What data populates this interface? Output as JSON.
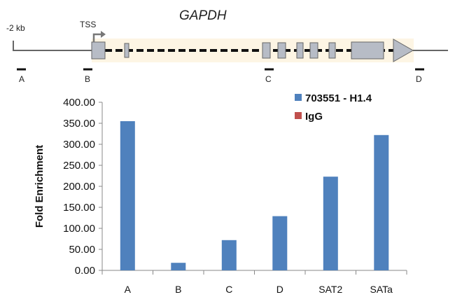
{
  "diagram": {
    "gene_name": "GAPDH",
    "upstream_label": "-2 kb",
    "tss_label": "TSS",
    "primer_labels": [
      "A",
      "B",
      "C",
      "D"
    ]
  },
  "chart_data": {
    "type": "bar",
    "categories": [
      "A",
      "B",
      "C",
      "D",
      "SAT2",
      "SATa"
    ],
    "series": [
      {
        "name": "703551 - H1.4",
        "values": [
          355,
          18,
          72,
          129,
          223,
          322
        ],
        "color": "#4f81bd"
      },
      {
        "name": "IgG",
        "values": [
          0,
          0,
          0,
          0,
          0,
          0
        ],
        "color": "#c0504d"
      }
    ],
    "y_ticks": [
      "0.00",
      "50.00",
      "100.00",
      "150.00",
      "200.00",
      "250.00",
      "300.00",
      "350.00",
      "400.00"
    ],
    "ylim": [
      0,
      400
    ],
    "xlabel": "",
    "ylabel": "Fold Enrichment",
    "grid": false,
    "legend_position": "top-right"
  }
}
